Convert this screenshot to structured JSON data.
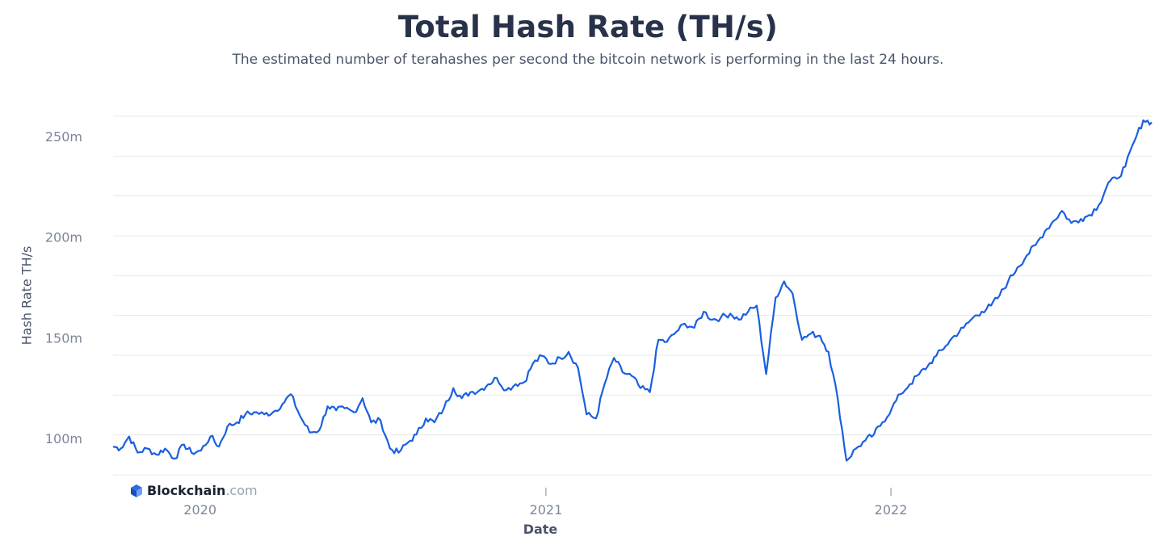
{
  "header": {
    "title": "Total Hash Rate (TH/s)",
    "subtitle": "The estimated number of terahashes per second the bitcoin network is performing in the last 24 hours."
  },
  "branding": {
    "name": "Blockchain",
    "suffix": ".com"
  },
  "colors": {
    "line": "#1a5fe0",
    "grid": "#e6e8ec",
    "tick_text": "#7d869a",
    "logo": "#2b6fe8"
  },
  "chart_data": {
    "type": "line",
    "title": "Total Hash Rate (TH/s)",
    "xlabel": "Date",
    "ylabel": "Hash Rate TH/s",
    "ylim": [
      82,
      260
    ],
    "xlim": [
      "2019-10-01",
      "2022-10-04"
    ],
    "y_ticks": [
      100,
      150,
      200,
      250
    ],
    "y_tick_labels": [
      "100m",
      "150m",
      "200m",
      "250m"
    ],
    "x_ticks": [
      "2020-01-01",
      "2021-01-01",
      "2022-01-01"
    ],
    "x_tick_labels": [
      "2020",
      "2021",
      "2022"
    ],
    "grid": true,
    "series": [
      {
        "values_unit": "million TH/s",
        "x": [
          "2019-10-01",
          "2019-10-09",
          "2019-10-18",
          "2019-10-27",
          "2019-11-06",
          "2019-11-16",
          "2019-11-25",
          "2019-12-05",
          "2019-12-15",
          "2019-12-23",
          "2020-01-02",
          "2020-01-12",
          "2020-01-21",
          "2020-01-30",
          "2020-02-09",
          "2020-02-18",
          "2020-02-27",
          "2020-03-09",
          "2020-03-18",
          "2020-03-28",
          "2020-04-06",
          "2020-04-16",
          "2020-04-26",
          "2020-05-06",
          "2020-05-15",
          "2020-05-24",
          "2020-06-02",
          "2020-06-12",
          "2020-06-21",
          "2020-06-30",
          "2020-07-10",
          "2020-07-20",
          "2020-07-29",
          "2020-08-08",
          "2020-08-17",
          "2020-08-27",
          "2020-09-05",
          "2020-09-15",
          "2020-09-25",
          "2020-10-04",
          "2020-10-13",
          "2020-10-23",
          "2020-11-01",
          "2020-11-10",
          "2020-11-20",
          "2020-11-30",
          "2020-12-09",
          "2020-12-18",
          "2020-12-28",
          "2021-01-06",
          "2021-01-16",
          "2021-01-25",
          "2021-02-04",
          "2021-02-13",
          "2021-02-23",
          "2021-03-04",
          "2021-03-14",
          "2021-03-23",
          "2021-04-02",
          "2021-04-11",
          "2021-04-21",
          "2021-04-30",
          "2021-05-09",
          "2021-05-19",
          "2021-05-28",
          "2021-06-07",
          "2021-06-17",
          "2021-06-26",
          "2021-07-05",
          "2021-07-15",
          "2021-07-24",
          "2021-08-03",
          "2021-08-12",
          "2021-08-22",
          "2021-09-01",
          "2021-09-10",
          "2021-09-19",
          "2021-09-29",
          "2021-10-08",
          "2021-10-18",
          "2021-10-27",
          "2021-11-06",
          "2021-11-15",
          "2021-11-25",
          "2021-12-05",
          "2021-12-14",
          "2021-12-23",
          "2022-01-02",
          "2022-01-11",
          "2022-01-21",
          "2022-01-31",
          "2022-02-09",
          "2022-02-18",
          "2022-02-28",
          "2022-03-09",
          "2022-03-19",
          "2022-03-29",
          "2022-04-07",
          "2022-04-17",
          "2022-04-26",
          "2022-05-05",
          "2022-05-15",
          "2022-05-25",
          "2022-06-03",
          "2022-06-13",
          "2022-06-22",
          "2022-07-01",
          "2022-07-11",
          "2022-07-21",
          "2022-07-30",
          "2022-08-09",
          "2022-08-19",
          "2022-08-28",
          "2022-09-06",
          "2022-09-16",
          "2022-09-25",
          "2022-10-04"
        ],
        "values": [
          96,
          95,
          101,
          93,
          95,
          92,
          95,
          90,
          97,
          93,
          94,
          101,
          96,
          106,
          108,
          112,
          113,
          112,
          113,
          117,
          122,
          111,
          103,
          104,
          116,
          114,
          115,
          113,
          120,
          108,
          109,
          95,
          93,
          98,
          102,
          110,
          108,
          115,
          125,
          120,
          123,
          124,
          127,
          130,
          124,
          127,
          128,
          137,
          141,
          137,
          140,
          143,
          135,
          112,
          110,
          127,
          140,
          133,
          131,
          125,
          123,
          149,
          148,
          153,
          157,
          155,
          163,
          159,
          160,
          162,
          159,
          163,
          166,
          132,
          170,
          178,
          172,
          149,
          152,
          151,
          143,
          119,
          89,
          95,
          99,
          102,
          108,
          115,
          122,
          127,
          132,
          136,
          141,
          146,
          151,
          155,
          160,
          163,
          166,
          171,
          178,
          185,
          191,
          196,
          203,
          208,
          213,
          207,
          209,
          211,
          216,
          227,
          229,
          235,
          248,
          258,
          257
        ],
        "_note": "sampled"
      }
    ]
  }
}
